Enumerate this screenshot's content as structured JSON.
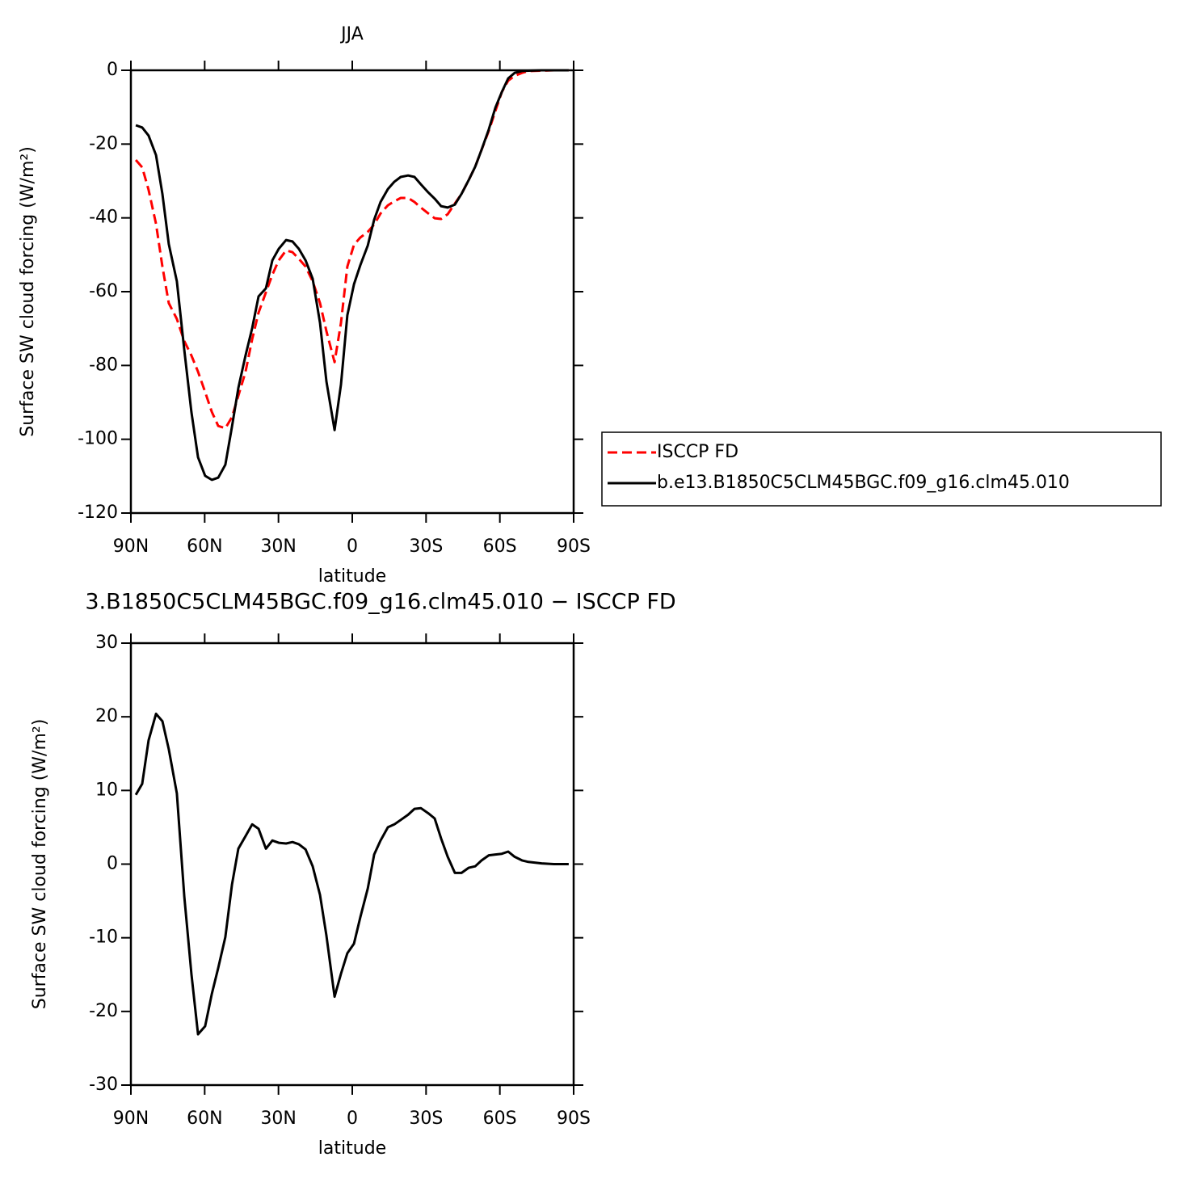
{
  "chart_data": [
    {
      "type": "line",
      "title": "JJA",
      "ylabel": "Surface SW cloud forcing (W/m²)",
      "xlabel": "latitude",
      "x": [
        88,
        85.4,
        82.8,
        79.8,
        77.2,
        74.6,
        71.3,
        68.3,
        65.4,
        62.7,
        59.8,
        57.1,
        54.5,
        51.6,
        48.9,
        46.3,
        43.4,
        40.7,
        38.1,
        35.1,
        32.5,
        29.9,
        26.9,
        24.3,
        21.7,
        19.0,
        16.1,
        13.1,
        10.5,
        7.2,
        4.6,
        2.0,
        -0.7,
        -3.3,
        -6.3,
        -8.9,
        -11.5,
        -14.5,
        -17.1,
        -19.7,
        -22.7,
        -25.3,
        -27.9,
        -30.9,
        -33.5,
        -36.1,
        -38.8,
        -41.7,
        -44.4,
        -47.3,
        -50.0,
        -52.6,
        -55.5,
        -58.2,
        -60.8,
        -63.4,
        -66.0,
        -69.0,
        -71.6,
        -77,
        -82,
        -88
      ],
      "series": [
        {
          "name": "ISCCP FD",
          "color": "#ff0000",
          "dashed": true,
          "values": [
            -24.3,
            -26.3,
            -32.4,
            -41.6,
            -53.2,
            -63.1,
            -67.4,
            -73.4,
            -77.3,
            -81.7,
            -87.2,
            -92.6,
            -96.4,
            -97.0,
            -94.0,
            -88.2,
            -81.7,
            -72.9,
            -65.7,
            -60.2,
            -55.4,
            -51.5,
            -48.8,
            -49.3,
            -51.1,
            -53.2,
            -57.2,
            -63.1,
            -70.7,
            -79.1,
            -68.5,
            -53.2,
            -47.3,
            -45.3,
            -43.8,
            -41.8,
            -38.8,
            -36.6,
            -35.5,
            -34.6,
            -34.6,
            -35.7,
            -37.2,
            -38.8,
            -40.1,
            -40.3,
            -39.0,
            -36.1,
            -33.5,
            -29.8,
            -26.1,
            -21.5,
            -16.4,
            -11.0,
            -5.9,
            -2.8,
            -1.5,
            -0.7,
            -0.2,
            -0.1,
            0,
            0
          ]
        },
        {
          "name": "b.e13.B1850C5CLM45BGC.f09_g16.clm45.010",
          "color": "#000000",
          "dashed": false,
          "values": [
            -14.9,
            -15.5,
            -17.7,
            -23.0,
            -33.5,
            -47.1,
            -57.2,
            -75.8,
            -92.6,
            -104.9,
            -109.9,
            -111.0,
            -110.4,
            -106.9,
            -96.6,
            -86.1,
            -77.3,
            -69.9,
            -61.3,
            -59.1,
            -51.5,
            -48.4,
            -46.0,
            -46.4,
            -48.4,
            -51.5,
            -56.5,
            -68.5,
            -84.3,
            -97.5,
            -85.2,
            -66.4,
            -58.0,
            -52.8,
            -47.5,
            -40.5,
            -35.7,
            -32.2,
            -30.2,
            -28.9,
            -28.5,
            -28.9,
            -30.9,
            -33.1,
            -34.8,
            -36.8,
            -37.2,
            -36.4,
            -33.5,
            -29.8,
            -26.1,
            -21.5,
            -16.0,
            -10.1,
            -5.9,
            -2.2,
            -0.7,
            -0.2,
            -0.1,
            0,
            0,
            0
          ]
        }
      ],
      "xlim": [
        90,
        -90
      ],
      "xticks": [
        {
          "value": 90,
          "label": "90N"
        },
        {
          "value": 60,
          "label": "60N"
        },
        {
          "value": 30,
          "label": "30N"
        },
        0,
        {
          "value": -30,
          "label": "30S"
        },
        {
          "value": -60,
          "label": "60S"
        },
        {
          "value": -90,
          "label": "90S"
        }
      ],
      "ylim": [
        -120,
        0
      ],
      "yticks": [
        -120,
        -100,
        -80,
        -60,
        -40,
        -20,
        0
      ],
      "legend": "right"
    },
    {
      "type": "line",
      "title": "3.B1850C5CLM45BGC.f09_g16.clm45.010 − ISCCP FD",
      "ylabel": "Surface SW cloud forcing (W/m²)",
      "xlabel": "latitude",
      "x": [
        88,
        85.4,
        82.8,
        79.8,
        77.2,
        74.6,
        71.3,
        68.3,
        65.4,
        62.7,
        59.8,
        57.1,
        54.5,
        51.6,
        48.9,
        46.3,
        43.4,
        40.7,
        38.1,
        35.1,
        32.5,
        29.9,
        26.9,
        24.3,
        21.7,
        19.0,
        16.1,
        13.1,
        10.5,
        7.2,
        4.6,
        2.0,
        -0.7,
        -3.3,
        -6.3,
        -8.9,
        -11.5,
        -14.5,
        -17.1,
        -19.7,
        -22.7,
        -25.3,
        -27.9,
        -30.9,
        -33.5,
        -36.1,
        -38.8,
        -41.7,
        -44.4,
        -47.3,
        -50.0,
        -52.6,
        -55.5,
        -58.2,
        -60.8,
        -63.4,
        -66.0,
        -69.0,
        -71.6,
        -77,
        -82,
        -88
      ],
      "values": [
        9.4,
        10.9,
        16.8,
        20.4,
        19.4,
        15.6,
        9.6,
        -4.4,
        -14.9,
        -23.1,
        -22.0,
        -17.6,
        -14.1,
        -9.9,
        -2.8,
        2.1,
        3.8,
        5.4,
        4.8,
        2.1,
        3.2,
        2.9,
        2.8,
        3.0,
        2.7,
        2.0,
        -0.3,
        -4.2,
        -9.7,
        -18.0,
        -14.9,
        -12.1,
        -10.8,
        -7.2,
        -3.3,
        1.3,
        3.2,
        5.0,
        5.4,
        6.0,
        6.7,
        7.5,
        7.6,
        6.9,
        6.2,
        3.5,
        1.0,
        -1.2,
        -1.2,
        -0.5,
        -0.3,
        0.5,
        1.2,
        1.3,
        1.4,
        1.7,
        1.0,
        0.5,
        0.3,
        0.1,
        0,
        0
      ],
      "color": "#000000",
      "xlim": [
        90,
        -90
      ],
      "xticks": [
        {
          "value": 90,
          "label": "90N"
        },
        {
          "value": 60,
          "label": "60N"
        },
        {
          "value": 30,
          "label": "30N"
        },
        0,
        {
          "value": -30,
          "label": "30S"
        },
        {
          "value": -60,
          "label": "60S"
        },
        {
          "value": -90,
          "label": "90S"
        }
      ],
      "ylim": [
        -30,
        30
      ],
      "yticks": [
        -30,
        -20,
        -10,
        0,
        10,
        20,
        30
      ]
    }
  ]
}
